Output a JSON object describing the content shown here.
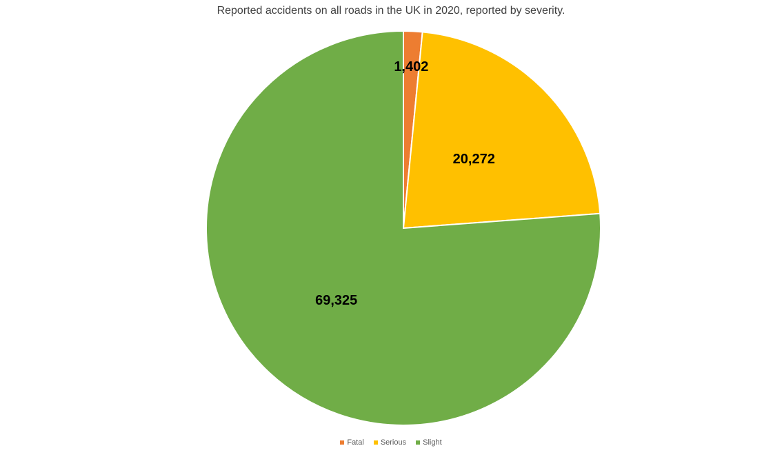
{
  "chart_data": {
    "type": "pie",
    "title": "Reported accidents on all roads in the UK in 2020, reported by severity.",
    "categories": [
      "Fatal",
      "Serious",
      "Slight"
    ],
    "values": [
      1402,
      20272,
      69325
    ],
    "data_labels": [
      "1,402",
      "20,272",
      "69,325"
    ],
    "colors": [
      "#ED7D31",
      "#FFC000",
      "#70AD47"
    ],
    "legend_position": "bottom",
    "start_angle_deg": 0,
    "direction": "clockwise"
  }
}
